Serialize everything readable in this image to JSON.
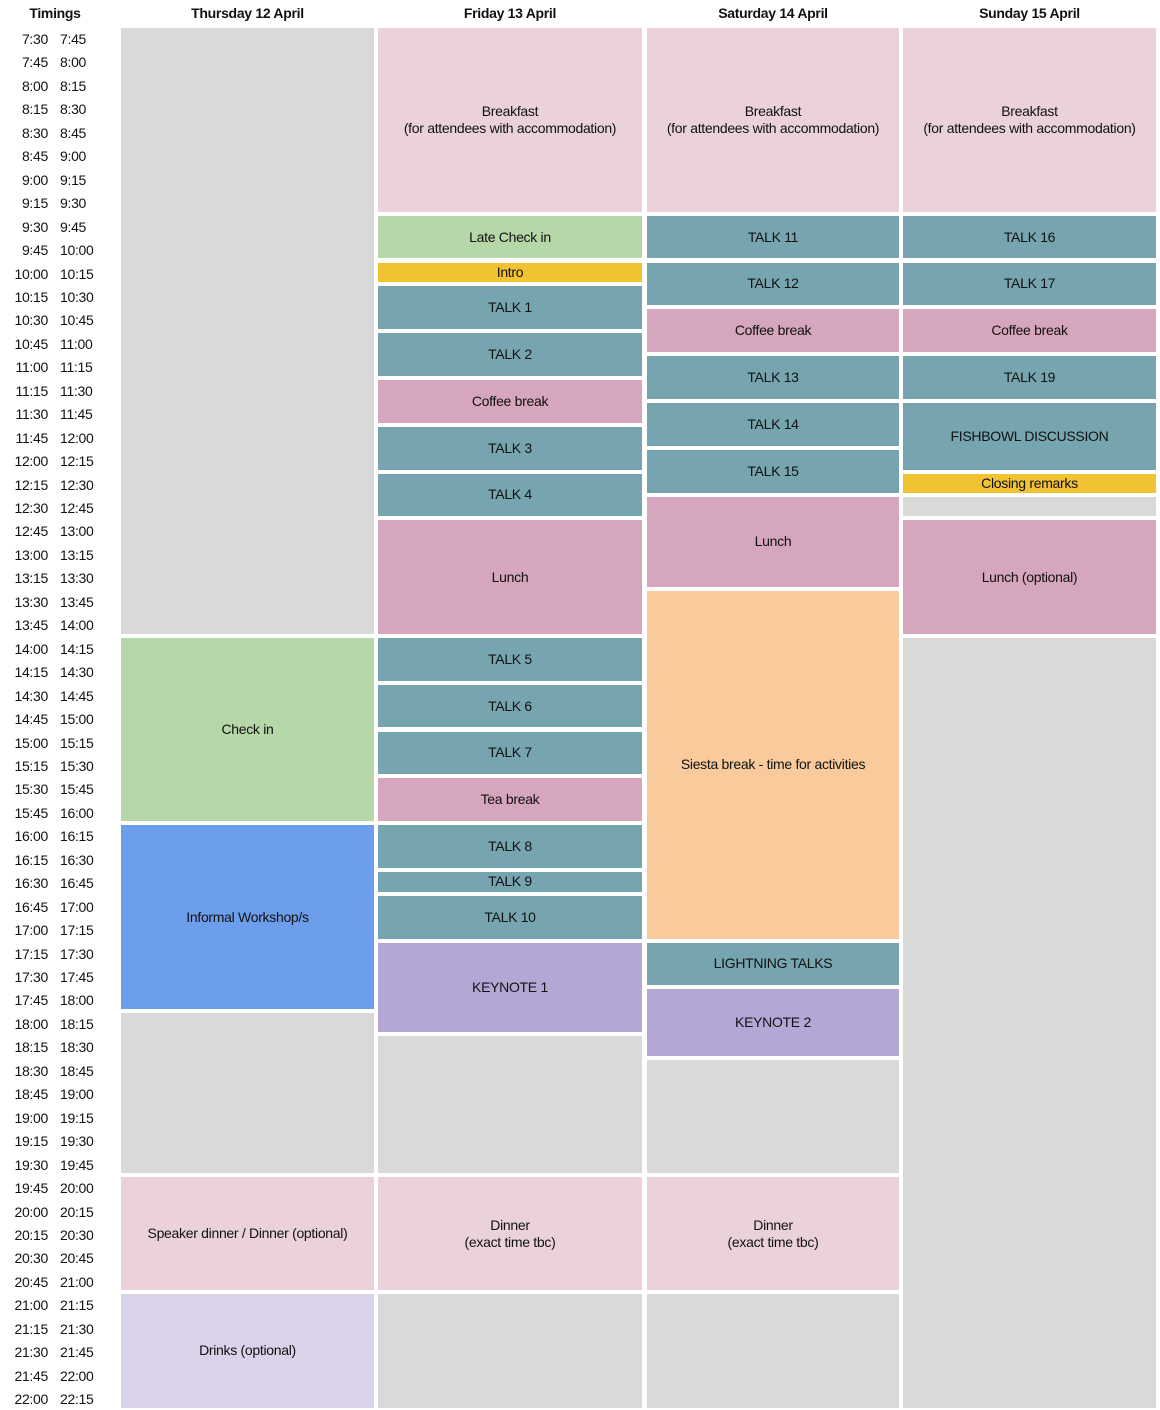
{
  "header": {
    "timings": "Timings",
    "days": [
      "Thursday 12 April",
      "Friday 13 April",
      "Saturday 14 April",
      "Sunday 15 April"
    ]
  },
  "colors": {
    "empty": "#d9d9d9",
    "meal": "#ead1dc",
    "checkin": "#b6d7a8",
    "highlight": "#f1c232",
    "talk": "#76a5af",
    "break": "#d5a6bd",
    "workshop": "#6d9eeb",
    "siesta": "#f9cb9c",
    "keynote": "#b4a7d6",
    "drinks": "#d9d2e9"
  },
  "timings": [
    [
      "7:30",
      "7:45"
    ],
    [
      "7:45",
      "8:00"
    ],
    [
      "8:00",
      "8:15"
    ],
    [
      "8:15",
      "8:30"
    ],
    [
      "8:30",
      "8:45"
    ],
    [
      "8:45",
      "9:00"
    ],
    [
      "9:00",
      "9:15"
    ],
    [
      "9:15",
      "9:30"
    ],
    [
      "9:30",
      "9:45"
    ],
    [
      "9:45",
      "10:00"
    ],
    [
      "10:00",
      "10:15"
    ],
    [
      "10:15",
      "10:30"
    ],
    [
      "10:30",
      "10:45"
    ],
    [
      "10:45",
      "11:00"
    ],
    [
      "11:00",
      "11:15"
    ],
    [
      "11:15",
      "11:30"
    ],
    [
      "11:30",
      "11:45"
    ],
    [
      "11:45",
      "12:00"
    ],
    [
      "12:00",
      "12:15"
    ],
    [
      "12:15",
      "12:30"
    ],
    [
      "12:30",
      "12:45"
    ],
    [
      "12:45",
      "13:00"
    ],
    [
      "13:00",
      "13:15"
    ],
    [
      "13:15",
      "13:30"
    ],
    [
      "13:30",
      "13:45"
    ],
    [
      "13:45",
      "14:00"
    ],
    [
      "14:00",
      "14:15"
    ],
    [
      "14:15",
      "14:30"
    ],
    [
      "14:30",
      "14:45"
    ],
    [
      "14:45",
      "15:00"
    ],
    [
      "15:00",
      "15:15"
    ],
    [
      "15:15",
      "15:30"
    ],
    [
      "15:30",
      "15:45"
    ],
    [
      "15:45",
      "16:00"
    ],
    [
      "16:00",
      "16:15"
    ],
    [
      "16:15",
      "16:30"
    ],
    [
      "16:30",
      "16:45"
    ],
    [
      "16:45",
      "17:00"
    ],
    [
      "17:00",
      "17:15"
    ],
    [
      "17:15",
      "17:30"
    ],
    [
      "17:30",
      "17:45"
    ],
    [
      "17:45",
      "18:00"
    ],
    [
      "18:00",
      "18:15"
    ],
    [
      "18:15",
      "18:30"
    ],
    [
      "18:30",
      "18:45"
    ],
    [
      "18:45",
      "19:00"
    ],
    [
      "19:00",
      "19:15"
    ],
    [
      "19:15",
      "19:30"
    ],
    [
      "19:30",
      "19:45"
    ],
    [
      "19:45",
      "20:00"
    ],
    [
      "20:00",
      "20:15"
    ],
    [
      "20:15",
      "20:30"
    ],
    [
      "20:30",
      "20:45"
    ],
    [
      "20:45",
      "21:00"
    ],
    [
      "21:00",
      "21:15"
    ],
    [
      "21:15",
      "21:30"
    ],
    [
      "21:30",
      "21:45"
    ],
    [
      "21:45",
      "22:00"
    ],
    [
      "22:00",
      "22:15"
    ]
  ],
  "days": [
    {
      "events": [
        {
          "label": "",
          "start": "7:30",
          "end": "14:00",
          "type": "empty"
        },
        {
          "label": "Check in",
          "start": "14:00",
          "end": "16:00",
          "type": "checkin"
        },
        {
          "label": "Informal Workshop/s",
          "start": "16:00",
          "end": "18:00",
          "type": "workshop"
        },
        {
          "label": "",
          "start": "18:00",
          "end": "19:45",
          "type": "empty"
        },
        {
          "label": "Speaker dinner / Dinner (optional)",
          "start": "19:45",
          "end": "21:00",
          "type": "meal"
        },
        {
          "label": "Drinks (optional)",
          "start": "21:00",
          "end": "22:15",
          "type": "drinks"
        }
      ]
    },
    {
      "events": [
        {
          "label": "Breakfast\n(for attendees with accommodation)",
          "start": "7:30",
          "end": "9:30",
          "type": "meal"
        },
        {
          "label": "Late Check in",
          "start": "9:30",
          "end": "10:00",
          "type": "checkin"
        },
        {
          "label": "Intro",
          "start": "10:00",
          "end": "10:15",
          "type": "highlight"
        },
        {
          "label": "TALK 1",
          "start": "10:15",
          "end": "10:45",
          "type": "talk"
        },
        {
          "label": "TALK 2",
          "start": "10:45",
          "end": "11:15",
          "type": "talk"
        },
        {
          "label": "Coffee break",
          "start": "11:15",
          "end": "11:45",
          "type": "break"
        },
        {
          "label": "TALK 3",
          "start": "11:45",
          "end": "12:15",
          "type": "talk"
        },
        {
          "label": "TALK 4",
          "start": "12:15",
          "end": "12:45",
          "type": "talk"
        },
        {
          "label": "Lunch",
          "start": "12:45",
          "end": "14:00",
          "type": "break"
        },
        {
          "label": "TALK 5",
          "start": "14:00",
          "end": "14:30",
          "type": "talk"
        },
        {
          "label": "TALK 6",
          "start": "14:30",
          "end": "15:00",
          "type": "talk"
        },
        {
          "label": "TALK 7",
          "start": "15:00",
          "end": "15:30",
          "type": "talk"
        },
        {
          "label": "Tea break",
          "start": "15:30",
          "end": "16:00",
          "type": "break"
        },
        {
          "label": "TALK 8",
          "start": "16:00",
          "end": "16:30",
          "type": "talk"
        },
        {
          "label": "TALK 9",
          "start": "16:30",
          "end": "16:45",
          "type": "talk"
        },
        {
          "label": "TALK 10",
          "start": "16:45",
          "end": "17:15",
          "type": "talk"
        },
        {
          "label": "KEYNOTE 1",
          "start": "17:15",
          "end": "18:15",
          "type": "keynote"
        },
        {
          "label": "",
          "start": "18:15",
          "end": "19:45",
          "type": "empty"
        },
        {
          "label": "Dinner\n(exact time tbc)",
          "start": "19:45",
          "end": "21:00",
          "type": "meal"
        },
        {
          "label": "",
          "start": "21:00",
          "end": "22:15",
          "type": "empty"
        }
      ]
    },
    {
      "events": [
        {
          "label": "Breakfast\n(for attendees with accommodation)",
          "start": "7:30",
          "end": "9:30",
          "type": "meal"
        },
        {
          "label": "TALK 11",
          "start": "9:30",
          "end": "10:00",
          "type": "talk"
        },
        {
          "label": "TALK 12",
          "start": "10:00",
          "end": "10:30",
          "type": "talk"
        },
        {
          "label": "Coffee break",
          "start": "10:30",
          "end": "11:00",
          "type": "break"
        },
        {
          "label": "TALK 13",
          "start": "11:00",
          "end": "11:30",
          "type": "talk"
        },
        {
          "label": "TALK 14",
          "start": "11:30",
          "end": "12:00",
          "type": "talk"
        },
        {
          "label": "TALK 15",
          "start": "12:00",
          "end": "12:30",
          "type": "talk"
        },
        {
          "label": "Lunch",
          "start": "12:30",
          "end": "13:30",
          "type": "break"
        },
        {
          "label": "Siesta break - time for activities",
          "start": "13:30",
          "end": "17:15",
          "type": "siesta"
        },
        {
          "label": "LIGHTNING TALKS",
          "start": "17:15",
          "end": "17:45",
          "type": "talk"
        },
        {
          "label": "KEYNOTE 2",
          "start": "17:45",
          "end": "18:30",
          "type": "keynote"
        },
        {
          "label": "",
          "start": "18:30",
          "end": "19:45",
          "type": "empty"
        },
        {
          "label": "Dinner\n(exact time tbc)",
          "start": "19:45",
          "end": "21:00",
          "type": "meal"
        },
        {
          "label": "",
          "start": "21:00",
          "end": "22:15",
          "type": "empty"
        }
      ]
    },
    {
      "events": [
        {
          "label": "Breakfast\n(for attendees with accommodation)",
          "start": "7:30",
          "end": "9:30",
          "type": "meal"
        },
        {
          "label": "TALK 16",
          "start": "9:30",
          "end": "10:00",
          "type": "talk"
        },
        {
          "label": "TALK 17",
          "start": "10:00",
          "end": "10:30",
          "type": "talk"
        },
        {
          "label": "Coffee break",
          "start": "10:30",
          "end": "11:00",
          "type": "break"
        },
        {
          "label": "TALK 19",
          "start": "11:00",
          "end": "11:30",
          "type": "talk"
        },
        {
          "label": "FISHBOWL DISCUSSION",
          "start": "11:30",
          "end": "12:15",
          "type": "talk"
        },
        {
          "label": "Closing remarks",
          "start": "12:15",
          "end": "12:30",
          "type": "highlight"
        },
        {
          "label": "",
          "start": "12:30",
          "end": "12:45",
          "type": "empty"
        },
        {
          "label": "Lunch (optional)",
          "start": "12:45",
          "end": "14:00",
          "type": "break"
        },
        {
          "label": "",
          "start": "14:00",
          "end": "22:15",
          "type": "empty"
        }
      ]
    }
  ]
}
